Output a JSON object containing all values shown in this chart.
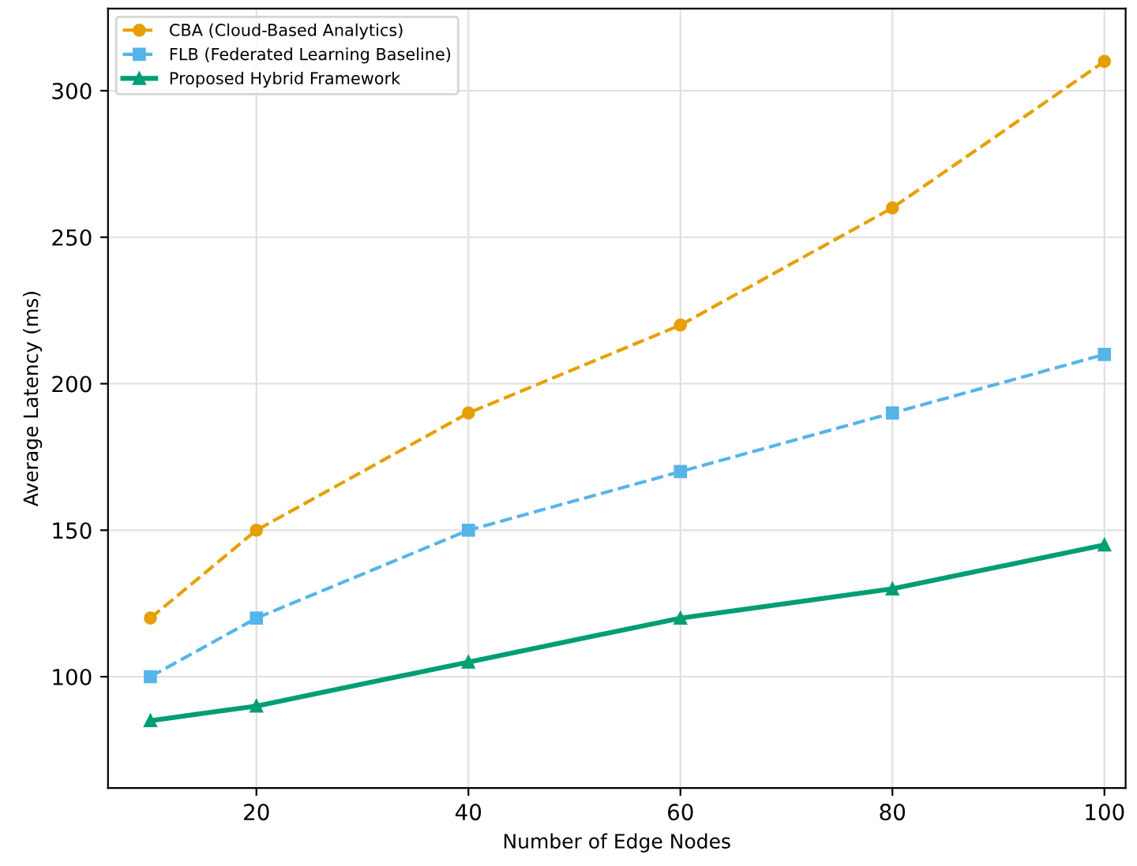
{
  "chart_data": {
    "type": "line",
    "xlabel": "Number of Edge Nodes",
    "ylabel": "Average Latency (ms)",
    "x": [
      10,
      20,
      40,
      60,
      80,
      100
    ],
    "series": [
      {
        "name": "CBA (Cloud-Based Analytics)",
        "color": "#e69f00",
        "values": [
          120,
          150,
          190,
          220,
          260,
          310
        ],
        "marker": "circle",
        "line_style": "dashed"
      },
      {
        "name": "FLB (Federated Learning Baseline)",
        "color": "#56b4e9",
        "values": [
          100,
          120,
          150,
          170,
          190,
          210
        ],
        "marker": "square",
        "line_style": "dashed"
      },
      {
        "name": "Proposed Hybrid Framework",
        "color": "#009e73",
        "values": [
          85,
          90,
          105,
          120,
          130,
          145
        ],
        "marker": "triangle",
        "line_style": "solid"
      }
    ],
    "xlim": [
      6,
      102
    ],
    "xticks": [
      20,
      40,
      60,
      80,
      100
    ],
    "ylim": [
      62,
      328
    ],
    "yticks": [
      100,
      150,
      200,
      250,
      300
    ],
    "grid": true,
    "legend": "top left"
  }
}
